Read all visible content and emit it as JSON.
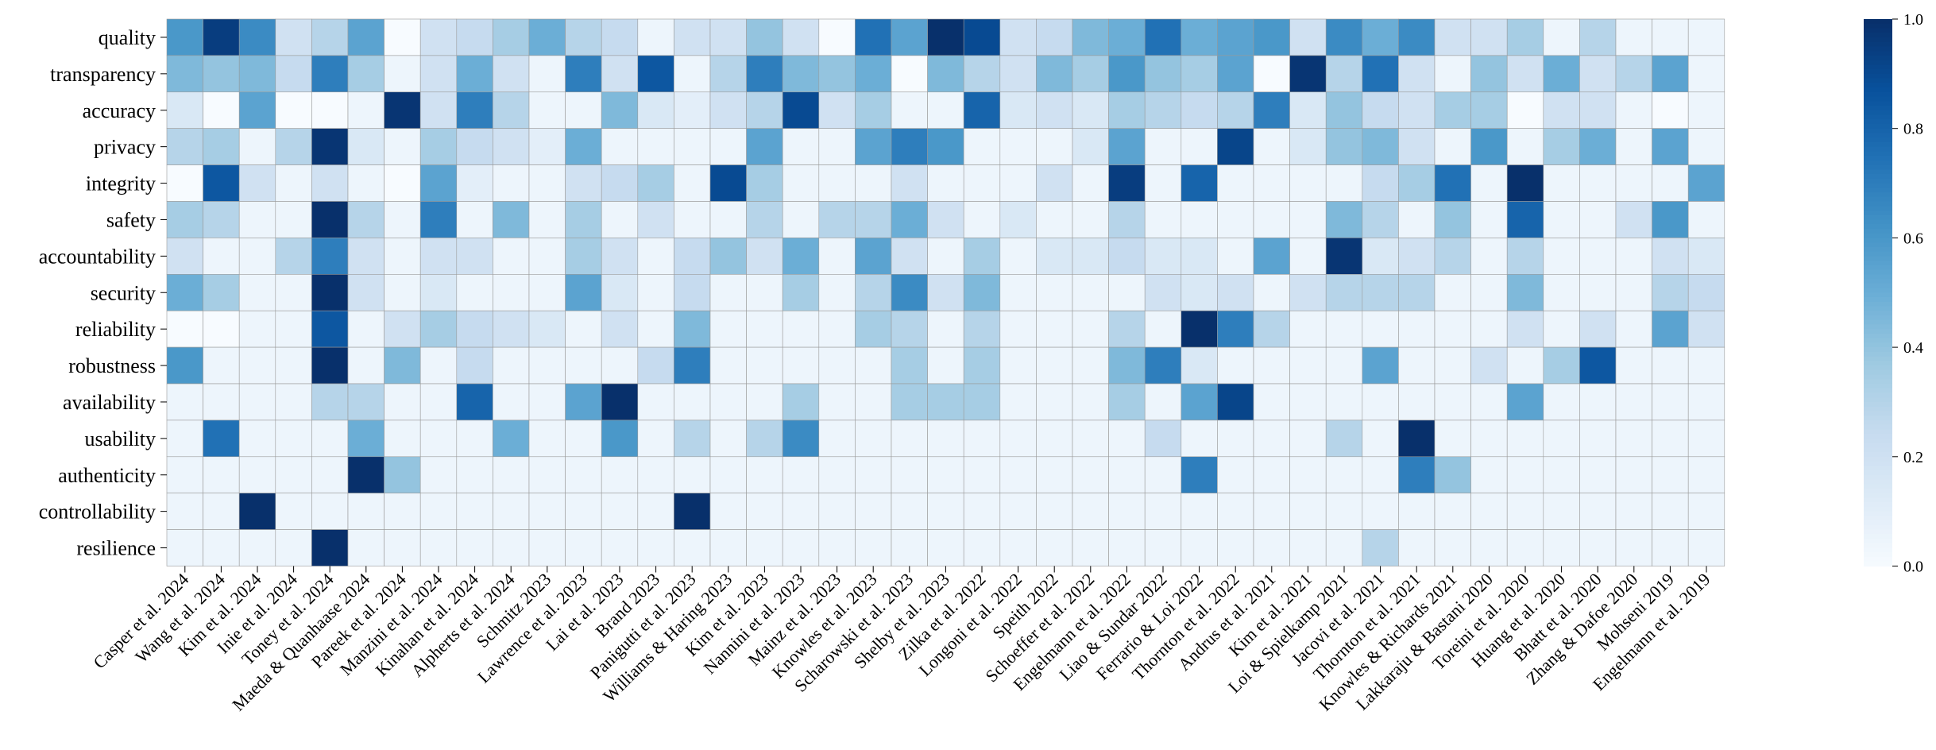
{
  "chart_data": {
    "type": "heatmap",
    "rows": [
      "quality",
      "transparency",
      "accuracy",
      "privacy",
      "integrity",
      "safety",
      "accountability",
      "security",
      "reliability",
      "robustness",
      "availability",
      "usability",
      "authenticity",
      "controllability",
      "resilience"
    ],
    "columns": [
      "Casper et al. 2024",
      "Wang et al. 2024",
      "Kim et al. 2024",
      "Inie et al. 2024",
      "Toney et al. 2024",
      "Maeda & Quanhaase 2024",
      "Pareek et al. 2024",
      "Manzini et al. 2024",
      "Kinahan et al. 2024",
      "Alpherts et al. 2024",
      "Schmitz 2023",
      "Lawrence et al. 2023",
      "Lai et al. 2023",
      "Brand 2023",
      "Panigutti et al. 2023",
      "Williams & Haring 2023",
      "Kim et al. 2023",
      "Nannini et al. 2023",
      "Mainz et al. 2023",
      "Knowles et al. 2023",
      "Scharowski et al. 2023",
      "Shelby et al. 2023",
      "Zilka et al. 2022",
      "Longoni et al. 2022",
      "Speith 2022",
      "Schoeffer et al. 2022",
      "Engelmann et al. 2022",
      "Liao & Sundar 2022",
      "Ferrario & Loi 2022",
      "Thornton et al. 2022",
      "Andrus et al. 2021",
      "Kim et al. 2021",
      "Loi & Spielkamp 2021",
      "Jacovi et al. 2021",
      "Thornton et al. 2021",
      "Knowles & Richards 2021",
      "Lakkaraju & Bastani 2020",
      "Toreini et al. 2020",
      "Huang et al. 2020",
      "Bhatt et al. 2020",
      "Zhang & Dafoe 2020",
      "Mohseni 2019",
      "Engelmann et al. 2019"
    ],
    "values": [
      [
        0.6,
        0.95,
        0.65,
        0.2,
        0.3,
        0.55,
        0.0,
        0.2,
        0.25,
        0.35,
        0.5,
        0.3,
        0.25,
        0.05,
        0.2,
        0.2,
        0.4,
        0.2,
        0.0,
        0.75,
        0.55,
        1.0,
        0.9,
        0.2,
        0.25,
        0.45,
        0.5,
        0.75,
        0.5,
        0.55,
        0.6,
        0.2,
        0.65,
        0.5,
        0.65,
        0.2,
        0.2,
        0.35,
        0.05,
        0.3,
        0.05,
        0.05,
        0.05
      ],
      [
        0.45,
        0.4,
        0.45,
        0.25,
        0.7,
        0.35,
        0.05,
        0.2,
        0.5,
        0.2,
        0.05,
        0.7,
        0.2,
        0.85,
        0.05,
        0.3,
        0.7,
        0.45,
        0.4,
        0.5,
        0.0,
        0.45,
        0.3,
        0.2,
        0.45,
        0.35,
        0.6,
        0.4,
        0.35,
        0.55,
        0.0,
        0.98,
        0.3,
        0.75,
        0.2,
        0.05,
        0.4,
        0.2,
        0.5,
        0.2,
        0.3,
        0.55,
        0.05
      ],
      [
        0.15,
        0.0,
        0.55,
        0.0,
        0.0,
        0.05,
        0.98,
        0.2,
        0.7,
        0.3,
        0.05,
        0.05,
        0.45,
        0.15,
        0.1,
        0.2,
        0.3,
        0.9,
        0.2,
        0.35,
        0.05,
        0.05,
        0.8,
        0.15,
        0.2,
        0.15,
        0.35,
        0.3,
        0.25,
        0.3,
        0.7,
        0.15,
        0.4,
        0.25,
        0.2,
        0.35,
        0.35,
        0.0,
        0.2,
        0.2,
        0.05,
        0.0,
        0.05
      ],
      [
        0.3,
        0.35,
        0.05,
        0.3,
        0.98,
        0.15,
        0.05,
        0.35,
        0.25,
        0.2,
        0.1,
        0.5,
        0.05,
        0.05,
        0.05,
        0.05,
        0.55,
        0.05,
        0.05,
        0.55,
        0.7,
        0.6,
        0.05,
        0.05,
        0.05,
        0.15,
        0.55,
        0.05,
        0.05,
        0.92,
        0.05,
        0.15,
        0.4,
        0.45,
        0.2,
        0.05,
        0.6,
        0.05,
        0.35,
        0.5,
        0.05,
        0.55,
        0.05
      ],
      [
        0.0,
        0.85,
        0.2,
        0.05,
        0.2,
        0.05,
        0.0,
        0.55,
        0.1,
        0.05,
        0.05,
        0.2,
        0.25,
        0.35,
        0.05,
        0.9,
        0.35,
        0.05,
        0.05,
        0.05,
        0.2,
        0.05,
        0.05,
        0.05,
        0.2,
        0.05,
        0.95,
        0.05,
        0.8,
        0.05,
        0.05,
        0.05,
        0.05,
        0.25,
        0.35,
        0.75,
        0.05,
        1.0,
        0.05,
        0.05,
        0.05,
        0.05,
        0.55
      ],
      [
        0.35,
        0.3,
        0.05,
        0.05,
        1.0,
        0.3,
        0.05,
        0.7,
        0.05,
        0.45,
        0.05,
        0.35,
        0.05,
        0.2,
        0.05,
        0.05,
        0.3,
        0.05,
        0.3,
        0.3,
        0.5,
        0.2,
        0.05,
        0.15,
        0.05,
        0.05,
        0.3,
        0.05,
        0.05,
        0.05,
        0.05,
        0.05,
        0.45,
        0.3,
        0.05,
        0.4,
        0.05,
        0.8,
        0.05,
        0.05,
        0.2,
        0.6,
        0.05
      ],
      [
        0.2,
        0.05,
        0.05,
        0.3,
        0.7,
        0.2,
        0.05,
        0.2,
        0.2,
        0.05,
        0.05,
        0.35,
        0.2,
        0.05,
        0.25,
        0.4,
        0.2,
        0.5,
        0.05,
        0.55,
        0.2,
        0.05,
        0.35,
        0.05,
        0.15,
        0.15,
        0.25,
        0.15,
        0.15,
        0.05,
        0.55,
        0.05,
        0.98,
        0.15,
        0.2,
        0.3,
        0.05,
        0.3,
        0.05,
        0.05,
        0.05,
        0.2,
        0.15
      ],
      [
        0.5,
        0.35,
        0.05,
        0.05,
        1.0,
        0.2,
        0.05,
        0.15,
        0.05,
        0.05,
        0.05,
        0.55,
        0.15,
        0.05,
        0.25,
        0.05,
        0.05,
        0.35,
        0.05,
        0.3,
        0.65,
        0.2,
        0.45,
        0.05,
        0.05,
        0.05,
        0.05,
        0.2,
        0.15,
        0.2,
        0.05,
        0.2,
        0.3,
        0.3,
        0.3,
        0.05,
        0.05,
        0.45,
        0.05,
        0.05,
        0.05,
        0.3,
        0.25
      ],
      [
        0.0,
        0.0,
        0.05,
        0.05,
        0.85,
        0.05,
        0.2,
        0.35,
        0.25,
        0.2,
        0.15,
        0.05,
        0.2,
        0.05,
        0.45,
        0.05,
        0.05,
        0.05,
        0.05,
        0.35,
        0.3,
        0.05,
        0.3,
        0.05,
        0.05,
        0.05,
        0.3,
        0.05,
        1.0,
        0.7,
        0.3,
        0.05,
        0.05,
        0.05,
        0.05,
        0.05,
        0.05,
        0.2,
        0.05,
        0.2,
        0.05,
        0.55,
        0.2
      ],
      [
        0.6,
        0.05,
        0.05,
        0.05,
        1.0,
        0.05,
        0.45,
        0.05,
        0.25,
        0.05,
        0.05,
        0.05,
        0.05,
        0.25,
        0.7,
        0.05,
        0.05,
        0.05,
        0.05,
        0.05,
        0.35,
        0.05,
        0.35,
        0.05,
        0.05,
        0.05,
        0.45,
        0.7,
        0.15,
        0.05,
        0.05,
        0.05,
        0.05,
        0.55,
        0.05,
        0.05,
        0.2,
        0.05,
        0.35,
        0.85,
        0.05,
        0.05,
        0.05
      ],
      [
        0.05,
        0.05,
        0.05,
        0.05,
        0.3,
        0.3,
        0.05,
        0.05,
        0.8,
        0.05,
        0.05,
        0.55,
        1.0,
        0.05,
        0.05,
        0.05,
        0.05,
        0.35,
        0.05,
        0.05,
        0.35,
        0.35,
        0.35,
        0.05,
        0.05,
        0.05,
        0.35,
        0.05,
        0.55,
        0.92,
        0.05,
        0.05,
        0.05,
        0.05,
        0.05,
        0.05,
        0.05,
        0.55,
        0.05,
        0.05,
        0.05,
        0.05,
        0.05
      ],
      [
        0.05,
        0.75,
        0.05,
        0.05,
        0.05,
        0.5,
        0.05,
        0.05,
        0.05,
        0.5,
        0.05,
        0.05,
        0.6,
        0.05,
        0.3,
        0.05,
        0.3,
        0.65,
        0.05,
        0.05,
        0.05,
        0.05,
        0.05,
        0.05,
        0.05,
        0.05,
        0.05,
        0.25,
        0.05,
        0.05,
        0.05,
        0.05,
        0.3,
        0.05,
        1.0,
        0.05,
        0.05,
        0.05,
        0.05,
        0.05,
        0.05,
        0.05,
        0.05
      ],
      [
        0.05,
        0.05,
        0.05,
        0.05,
        0.05,
        1.0,
        0.4,
        0.05,
        0.05,
        0.05,
        0.05,
        0.05,
        0.05,
        0.05,
        0.05,
        0.05,
        0.05,
        0.05,
        0.05,
        0.05,
        0.05,
        0.05,
        0.05,
        0.05,
        0.05,
        0.05,
        0.05,
        0.05,
        0.7,
        0.05,
        0.05,
        0.05,
        0.05,
        0.05,
        0.7,
        0.4,
        0.05,
        0.05,
        0.05,
        0.05,
        0.05,
        0.05,
        0.05
      ],
      [
        0.05,
        0.05,
        1.0,
        0.05,
        0.05,
        0.05,
        0.05,
        0.05,
        0.05,
        0.05,
        0.05,
        0.05,
        0.05,
        0.05,
        1.0,
        0.05,
        0.05,
        0.05,
        0.05,
        0.05,
        0.05,
        0.05,
        0.05,
        0.05,
        0.05,
        0.05,
        0.05,
        0.05,
        0.05,
        0.05,
        0.05,
        0.05,
        0.05,
        0.05,
        0.05,
        0.05,
        0.05,
        0.05,
        0.05,
        0.05,
        0.05,
        0.05,
        0.05
      ],
      [
        0.05,
        0.05,
        0.05,
        0.05,
        1.0,
        0.05,
        0.05,
        0.05,
        0.05,
        0.05,
        0.05,
        0.05,
        0.05,
        0.05,
        0.05,
        0.05,
        0.05,
        0.05,
        0.05,
        0.05,
        0.05,
        0.05,
        0.05,
        0.05,
        0.05,
        0.05,
        0.05,
        0.05,
        0.05,
        0.05,
        0.05,
        0.05,
        0.05,
        0.3,
        0.05,
        0.05,
        0.05,
        0.05,
        0.05,
        0.05,
        0.05,
        0.05,
        0.05
      ]
    ],
    "colorbar": {
      "range": [
        0.0,
        1.0
      ],
      "ticks": [
        "0.0",
        "0.2",
        "0.4",
        "0.6",
        "0.8",
        "1.0"
      ],
      "colormap": "Blues"
    }
  }
}
